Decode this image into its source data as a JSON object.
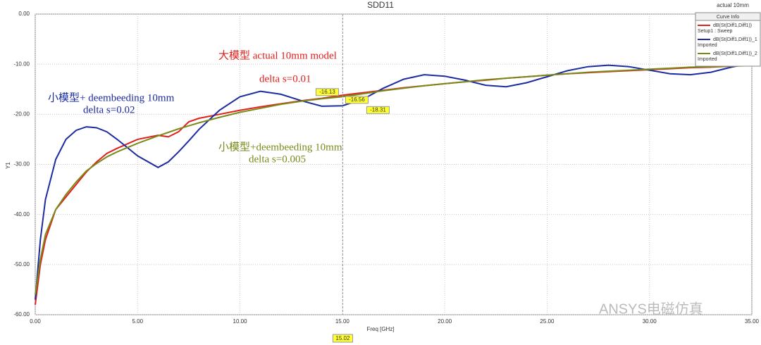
{
  "chart_data": {
    "type": "line",
    "title": "SDD11",
    "corner_note": "actual 10mm",
    "x_label": "Freq [GHz]",
    "y_label": "Y1",
    "xlim": [
      0,
      35
    ],
    "ylim": [
      -60,
      0
    ],
    "xticks": [
      {
        "value": 0,
        "label": "0.00"
      },
      {
        "value": 5,
        "label": "5.00"
      },
      {
        "value": 10,
        "label": "10.00"
      },
      {
        "value": 15,
        "label": "15.00"
      },
      {
        "value": 20,
        "label": "20.00"
      },
      {
        "value": 25,
        "label": "25.00"
      },
      {
        "value": 30,
        "label": "30.00"
      },
      {
        "value": 35,
        "label": "35.00"
      }
    ],
    "yticks": [
      {
        "value": 0,
        "label": "0.00"
      },
      {
        "value": -10,
        "label": "-10.00"
      },
      {
        "value": -20,
        "label": "-20.00"
      },
      {
        "value": -30,
        "label": "-30.00"
      },
      {
        "value": -40,
        "label": "-40.00"
      },
      {
        "value": -50,
        "label": "-50.00"
      },
      {
        "value": -60,
        "label": "-60.00"
      }
    ],
    "grid": true,
    "legend_title": "Curve Info",
    "legend_position": "top-right",
    "x": [
      0,
      0.25,
      0.5,
      1,
      1.5,
      2,
      2.5,
      3,
      3.5,
      4,
      5,
      6,
      6.5,
      7,
      7.5,
      8,
      9,
      10,
      11,
      12,
      13,
      14,
      15,
      16,
      17,
      18,
      19,
      20,
      21,
      22,
      23,
      24,
      25,
      26,
      27,
      28,
      29,
      30,
      31,
      32,
      33,
      34,
      35
    ],
    "series": [
      {
        "name": "dB(St(Diff1,Diff1))",
        "source": "Setup1 : Sweep",
        "color": "#e0201c",
        "values": [
          -58,
          -50,
          -45,
          -39,
          -36.5,
          -34,
          -31.5,
          -29.5,
          -27.8,
          -26.8,
          -25,
          -24.2,
          -24.5,
          -23.5,
          -21.5,
          -20.8,
          -20,
          -19.2,
          -18.5,
          -17.9,
          -17.3,
          -16.8,
          -16.2,
          -15.7,
          -15.2,
          -14.7,
          -14.3,
          -13.9,
          -13.5,
          -13.2,
          -12.8,
          -12.5,
          -12.2,
          -11.9,
          -11.7,
          -11.5,
          -11.3,
          -11.1,
          -10.9,
          -10.7,
          -10.6,
          -10.4,
          -10.2
        ]
      },
      {
        "name": "dB(St(Diff1,Diff1))_1",
        "source": "Imported",
        "color": "#1c2ca0",
        "values": [
          -57,
          -45,
          -37,
          -29,
          -25,
          -23.2,
          -22.5,
          -22.7,
          -23.5,
          -25,
          -28.3,
          -30.6,
          -29.5,
          -27.5,
          -25.3,
          -23,
          -19.2,
          -16.5,
          -15.4,
          -16,
          -17.3,
          -18.4,
          -18.3,
          -17,
          -14.8,
          -13,
          -12.1,
          -12.4,
          -13.2,
          -14.2,
          -14.5,
          -13.7,
          -12.5,
          -11.3,
          -10.5,
          -10.2,
          -10.5,
          -11.2,
          -11.9,
          -12.1,
          -11.6,
          -10.6,
          -9.8
        ]
      },
      {
        "name": "dB(St(Diff1,Diff1))_2",
        "source": "Imported",
        "color": "#7a8a1a",
        "values": [
          -56,
          -49,
          -44,
          -39,
          -36,
          -33.5,
          -31.3,
          -29.8,
          -28.5,
          -27.5,
          -25.8,
          -24.3,
          -23.6,
          -22.9,
          -22.3,
          -21.7,
          -20.6,
          -19.6,
          -18.8,
          -18,
          -17.4,
          -16.9,
          -16.5,
          -15.9,
          -15.3,
          -14.8,
          -14.3,
          -13.9,
          -13.5,
          -13.1,
          -12.8,
          -12.5,
          -12.2,
          -11.9,
          -11.6,
          -11.4,
          -11.2,
          -11,
          -10.8,
          -10.6,
          -10.5,
          -10.4,
          -10.3
        ]
      }
    ],
    "marker": {
      "x": 15.02,
      "values": [
        -16.13,
        -16.56,
        -18.31
      ]
    },
    "annotations": [
      {
        "text": "大模型 actual 10mm model",
        "color": "#e0201c"
      },
      {
        "text": "delta s=0.01",
        "color": "#e0201c"
      },
      {
        "text": "小模型+ deembeeding 10mm",
        "color": "#1c2ca0"
      },
      {
        "text": "delta s=0.02",
        "color": "#1c2ca0"
      },
      {
        "text": "小模型+deembeeding 10mm",
        "color": "#7a8a1a"
      },
      {
        "text": "delta s=0.005",
        "color": "#7a8a1a"
      }
    ],
    "watermark": "ANSYS电磁仿真"
  }
}
